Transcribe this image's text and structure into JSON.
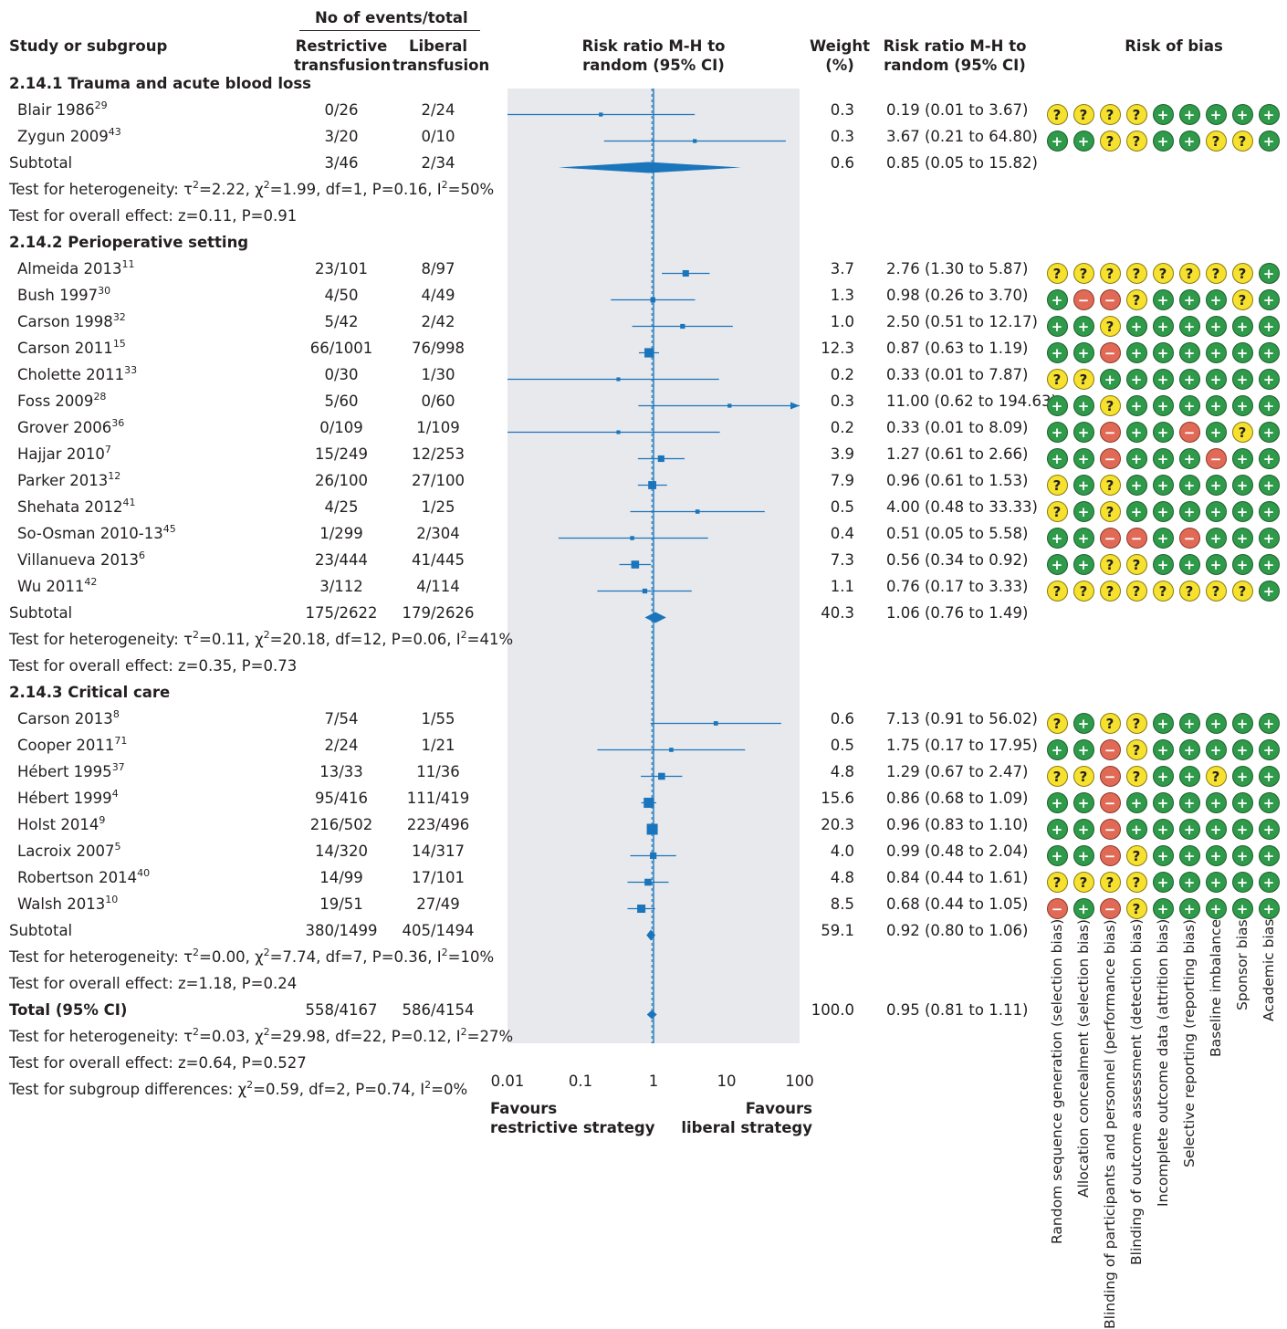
{
  "headers": {
    "study": "Study or subgroup",
    "events": "No of events/total",
    "restrictive": [
      "Restrictive",
      "transfusion"
    ],
    "liberal": [
      "Liberal",
      "transfusion"
    ],
    "rr_plot": [
      "Risk ratio M-H to",
      "random (95% CI)"
    ],
    "weight": [
      "Weight",
      "(%)"
    ],
    "rr_text": [
      "Risk ratio M-H to",
      "random (95% CI)"
    ],
    "rob": "Risk of bias"
  },
  "rob_domains": [
    "Random sequence generation (selection bias)",
    "Allocation concealment (selection bias)",
    "Blinding of participants and personnel (performance bias)",
    "Blinding of outcome assessment (detection bias)",
    "Incomplete outcome data (attrition bias)",
    "Selective reporting (reporting bias)",
    "Baseline imbalance",
    "Sponsor bias",
    "Academic bias"
  ],
  "rob_symbols": {
    "low": "+",
    "high": "−",
    "unclear": "?"
  },
  "colors": {
    "effect": "#1b75bc",
    "plot_bg": "#e8e9ec",
    "low": "#2e9a4a",
    "unclear": "#f5e12e",
    "high": "#e06a55"
  },
  "axis": {
    "ticks": [
      "0.01",
      "0.1",
      "1",
      "10",
      "100"
    ],
    "tick_values": [
      0.01,
      0.1,
      1,
      10,
      100
    ],
    "scale": "log",
    "favours_left": [
      "Favours",
      "restrictive strategy"
    ],
    "favours_right": [
      "Favours",
      "liberal strategy"
    ],
    "overall_estimate": 0.95
  },
  "chart_data": {
    "type": "forest",
    "xscale": "log",
    "xlim": [
      0.01,
      100
    ],
    "rows": [
      {
        "kind": "header",
        "label": "2.14.1 Trauma and acute blood loss"
      },
      {
        "kind": "study",
        "name": "Blair 1986",
        "ref": "29",
        "r": "0/26",
        "l": "2/24",
        "w": "0.3",
        "ci": "0.19 (0.01 to 3.67)",
        "est": 0.19,
        "lo": 0.01,
        "hi": 3.67,
        "rob": "UUUULLLLL"
      },
      {
        "kind": "study",
        "name": "Zygun 2009",
        "ref": "43",
        "r": "3/20",
        "l": "0/10",
        "w": "0.3",
        "ci": "3.67 (0.21 to 64.80)",
        "est": 3.67,
        "lo": 0.21,
        "hi": 64.8,
        "rob": "LLUULLUUL"
      },
      {
        "kind": "subtotal",
        "name": "Subtotal",
        "r": "3/46",
        "l": "2/34",
        "w": "0.6",
        "ci": "0.85 (0.05 to 15.82)",
        "est": 0.85,
        "lo": 0.05,
        "hi": 15.82
      },
      {
        "kind": "text",
        "label": "Test for heterogeneity: τ",
        "html": "Test for heterogeneity: τ<sup>2</sup>=2.22, χ<sup>2</sup>=1.99, df=1, P=0.16, I<sup>2</sup>=50%"
      },
      {
        "kind": "text",
        "label": "Test for overall effect: z=0.11, P=0.91"
      },
      {
        "kind": "header",
        "label": "2.14.2 Perioperative setting"
      },
      {
        "kind": "study",
        "name": "Almeida 2013",
        "ref": "11",
        "r": "23/101",
        "l": "8/97",
        "w": "3.7",
        "ci": "2.76 (1.30 to 5.87)",
        "est": 2.76,
        "lo": 1.3,
        "hi": 5.87,
        "rob": "UUUUUUUUL"
      },
      {
        "kind": "study",
        "name": "Bush 1997",
        "ref": "30",
        "r": "4/50",
        "l": "4/49",
        "w": "1.3",
        "ci": "0.98 (0.26 to 3.70)",
        "est": 0.98,
        "lo": 0.26,
        "hi": 3.7,
        "rob": "LHHULLLUL"
      },
      {
        "kind": "study",
        "name": "Carson 1998",
        "ref": "32",
        "r": "5/42",
        "l": "2/42",
        "w": "1.0",
        "ci": "2.50 (0.51 to 12.17)",
        "est": 2.5,
        "lo": 0.51,
        "hi": 12.17,
        "rob": "LLULLLLLL"
      },
      {
        "kind": "study",
        "name": "Carson 2011",
        "ref": "15",
        "r": "66/1001",
        "l": "76/998",
        "w": "12.3",
        "ci": "0.87 (0.63 to 1.19)",
        "est": 0.87,
        "lo": 0.63,
        "hi": 1.19,
        "rob": "LLHLLLLLL"
      },
      {
        "kind": "study",
        "name": "Cholette 2011",
        "ref": "33",
        "r": "0/30",
        "l": "1/30",
        "w": "0.2",
        "ci": "0.33 (0.01 to 7.87)",
        "est": 0.33,
        "lo": 0.01,
        "hi": 7.87,
        "rob": "UULLLLLLL"
      },
      {
        "kind": "study",
        "name": "Foss 2009",
        "ref": "28",
        "r": "5/60",
        "l": "0/60",
        "w": "0.3",
        "ci": "11.00 (0.62 to 194.63)",
        "est": 11.0,
        "lo": 0.62,
        "hi": 194.63,
        "rob": "LLULLLLLL"
      },
      {
        "kind": "study",
        "name": "Grover 2006",
        "ref": "36",
        "r": "0/109",
        "l": "1/109",
        "w": "0.2",
        "ci": "0.33 (0.01 to 8.09)",
        "est": 0.33,
        "lo": 0.01,
        "hi": 8.09,
        "rob": "LLHLLHLUL"
      },
      {
        "kind": "study",
        "name": "Hajjar 2010",
        "ref": "7",
        "r": "15/249",
        "l": "12/253",
        "w": "3.9",
        "ci": "1.27 (0.61 to 2.66)",
        "est": 1.27,
        "lo": 0.61,
        "hi": 2.66,
        "rob": "LLHLLLHLL"
      },
      {
        "kind": "study",
        "name": "Parker 2013",
        "ref": "12",
        "r": "26/100",
        "l": "27/100",
        "w": "7.9",
        "ci": "0.96 (0.61 to 1.53)",
        "est": 0.96,
        "lo": 0.61,
        "hi": 1.53,
        "rob": "ULULLLLLL"
      },
      {
        "kind": "study",
        "name": "Shehata 2012",
        "ref": "41",
        "r": "4/25",
        "l": "1/25",
        "w": "0.5",
        "ci": "4.00 (0.48 to 33.33)",
        "est": 4.0,
        "lo": 0.48,
        "hi": 33.33,
        "rob": "ULULLLLLL"
      },
      {
        "kind": "study",
        "name": "So-Osman 2010-13",
        "ref": "45",
        "r": "1/299",
        "l": "2/304",
        "w": "0.4",
        "ci": "0.51 (0.05 to 5.58)",
        "est": 0.51,
        "lo": 0.05,
        "hi": 5.58,
        "rob": "LLHHLHLLL"
      },
      {
        "kind": "study",
        "name": "Villanueva 2013",
        "ref": "6",
        "r": "23/444",
        "l": "41/445",
        "w": "7.3",
        "ci": "0.56 (0.34 to 0.92)",
        "est": 0.56,
        "lo": 0.34,
        "hi": 0.92,
        "rob": "LLUULLLLL"
      },
      {
        "kind": "study",
        "name": "Wu 2011",
        "ref": "42",
        "r": "3/112",
        "l": "4/114",
        "w": "1.1",
        "ci": "0.76 (0.17 to 3.33)",
        "est": 0.76,
        "lo": 0.17,
        "hi": 3.33,
        "rob": "UUUUUUUUL"
      },
      {
        "kind": "subtotal",
        "name": "Subtotal",
        "r": "175/2622",
        "l": "179/2626",
        "w": "40.3",
        "ci": "1.06 (0.76 to 1.49)",
        "est": 1.06,
        "lo": 0.76,
        "hi": 1.49
      },
      {
        "kind": "text",
        "label": "Test for heterogeneity: τ",
        "html": "Test for heterogeneity: τ<sup>2</sup>=0.11, χ<sup>2</sup>=20.18, df=12, P=0.06, I<sup>2</sup>=41%"
      },
      {
        "kind": "text",
        "label": "Test for overall effect: z=0.35, P=0.73"
      },
      {
        "kind": "header",
        "label": "2.14.3 Critical care"
      },
      {
        "kind": "study",
        "name": "Carson 2013",
        "ref": "8",
        "r": "7/54",
        "l": "1/55",
        "w": "0.6",
        "ci": "7.13 (0.91 to 56.02)",
        "est": 7.13,
        "lo": 0.91,
        "hi": 56.02,
        "rob": "ULUULLLLL"
      },
      {
        "kind": "study",
        "name": "Cooper 2011",
        "ref": "71",
        "r": "2/24",
        "l": "1/21",
        "w": "0.5",
        "ci": "1.75 (0.17 to 17.95)",
        "est": 1.75,
        "lo": 0.17,
        "hi": 17.95,
        "rob": "LLHULLLLL"
      },
      {
        "kind": "study",
        "name": "Hébert 1995",
        "ref": "37",
        "r": "13/33",
        "l": "11/36",
        "w": "4.8",
        "ci": "1.29 (0.67 to 2.47)",
        "est": 1.29,
        "lo": 0.67,
        "hi": 2.47,
        "rob": "UUHULLULL"
      },
      {
        "kind": "study",
        "name": "Hébert 1999",
        "ref": "4",
        "r": "95/416",
        "l": "111/419",
        "w": "15.6",
        "ci": "0.86 (0.68 to 1.09)",
        "est": 0.86,
        "lo": 0.68,
        "hi": 1.09,
        "rob": "LLHLLLLLL"
      },
      {
        "kind": "study",
        "name": "Holst 2014",
        "ref": "9",
        "r": "216/502",
        "l": "223/496",
        "w": "20.3",
        "ci": "0.96 (0.83 to 1.10)",
        "est": 0.96,
        "lo": 0.83,
        "hi": 1.1,
        "rob": "LLHLLLLLL"
      },
      {
        "kind": "study",
        "name": "Lacroix 2007",
        "ref": "5",
        "r": "14/320",
        "l": "14/317",
        "w": "4.0",
        "ci": "0.99 (0.48 to 2.04)",
        "est": 0.99,
        "lo": 0.48,
        "hi": 2.04,
        "rob": "LLHULLLLL"
      },
      {
        "kind": "study",
        "name": "Robertson 2014",
        "ref": "40",
        "r": "14/99",
        "l": "17/101",
        "w": "4.8",
        "ci": "0.84 (0.44 to 1.61)",
        "est": 0.84,
        "lo": 0.44,
        "hi": 1.61,
        "rob": "UUUULLLLL"
      },
      {
        "kind": "study",
        "name": "Walsh 2013",
        "ref": "10",
        "r": "19/51",
        "l": "27/49",
        "w": "8.5",
        "ci": "0.68 (0.44 to 1.05)",
        "est": 0.68,
        "lo": 0.44,
        "hi": 1.05,
        "rob": "HLHULLLLL"
      },
      {
        "kind": "subtotal",
        "name": "Subtotal",
        "r": "380/1499",
        "l": "405/1494",
        "w": "59.1",
        "ci": "0.92 (0.80 to 1.06)",
        "est": 0.92,
        "lo": 0.8,
        "hi": 1.06
      },
      {
        "kind": "text",
        "label": "Test for heterogeneity: τ",
        "html": "Test for heterogeneity: τ<sup>2</sup>=0.00, χ<sup>2</sup>=7.74, df=7, P=0.36, I<sup>2</sup>=10%"
      },
      {
        "kind": "text",
        "label": "Test for overall effect: z=1.18, P=0.24"
      },
      {
        "kind": "total",
        "name": "Total (95% CI)",
        "r": "558/4167",
        "l": "586/4154",
        "w": "100.0",
        "ci": "0.95 (0.81 to 1.11)",
        "est": 0.95,
        "lo": 0.81,
        "hi": 1.11
      },
      {
        "kind": "text",
        "label": "Test for heterogeneity: τ",
        "html": "Test for heterogeneity: τ<sup>2</sup>=0.03, χ<sup>2</sup>=29.98, df=22, P=0.12, I<sup>2</sup>=27%"
      },
      {
        "kind": "text",
        "label": "Test for overall effect: z=0.64, P=0.527"
      },
      {
        "kind": "text",
        "label": "Test for subgroup differences: χ",
        "html": "Test for subgroup differences: χ<sup>2</sup>=0.59, df=2, P=0.74, I<sup>2</sup>=0%"
      }
    ]
  }
}
